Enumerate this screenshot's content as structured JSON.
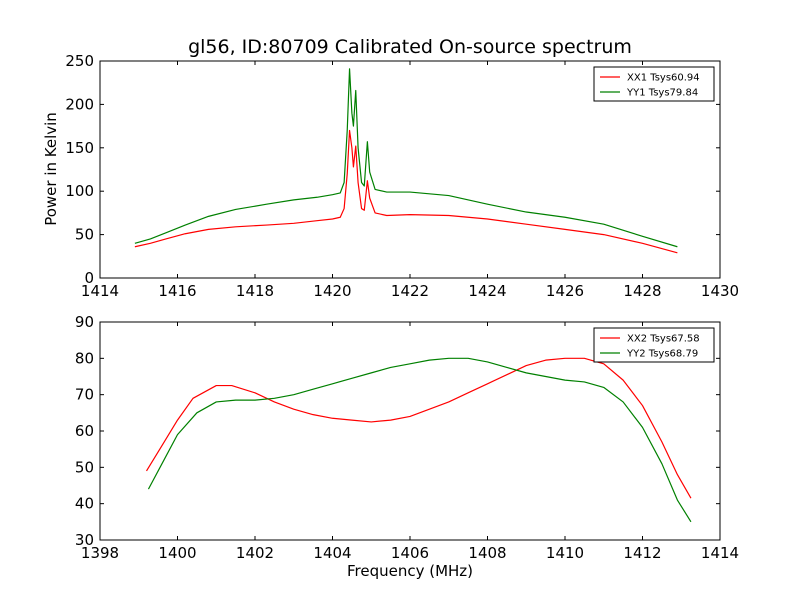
{
  "figure_title": "gl56, ID:80709 Calibrated On-source spectrum",
  "shared_ylabel": "Power in Kelvin",
  "shared_xlabel": "Frequency (MHz)",
  "colors": {
    "red": "#ff0000",
    "green": "#008000"
  },
  "chart_data": [
    {
      "type": "line",
      "title": "gl56, ID:80709 Calibrated On-source spectrum",
      "xlabel": "",
      "ylabel": "Power in Kelvin",
      "xlim": [
        1414,
        1430
      ],
      "ylim": [
        0,
        250
      ],
      "xticks": [
        1414,
        1416,
        1418,
        1420,
        1422,
        1424,
        1426,
        1428,
        1430
      ],
      "yticks": [
        0,
        50,
        100,
        150,
        200,
        250
      ],
      "grid": false,
      "legend_position": "top-right",
      "series": [
        {
          "name": "XX1 Tsys60.94",
          "color": "#ff0000",
          "points": [
            [
              1414.9,
              36
            ],
            [
              1415.3,
              40
            ],
            [
              1415.7,
              45
            ],
            [
              1416.2,
              51
            ],
            [
              1416.8,
              56
            ],
            [
              1417.5,
              59
            ],
            [
              1418.3,
              61
            ],
            [
              1419.0,
              63
            ],
            [
              1419.6,
              66
            ],
            [
              1420.0,
              68
            ],
            [
              1420.2,
              70
            ],
            [
              1420.3,
              80
            ],
            [
              1420.38,
              120
            ],
            [
              1420.44,
              170
            ],
            [
              1420.5,
              150
            ],
            [
              1420.54,
              128
            ],
            [
              1420.6,
              152
            ],
            [
              1420.66,
              110
            ],
            [
              1420.75,
              80
            ],
            [
              1420.82,
              78
            ],
            [
              1420.9,
              112
            ],
            [
              1420.96,
              92
            ],
            [
              1421.1,
              75
            ],
            [
              1421.4,
              72
            ],
            [
              1422.0,
              73
            ],
            [
              1423.0,
              72
            ],
            [
              1424.0,
              68
            ],
            [
              1425.0,
              62
            ],
            [
              1426.0,
              56
            ],
            [
              1427.0,
              50
            ],
            [
              1428.0,
              40
            ],
            [
              1428.9,
              29
            ]
          ]
        },
        {
          "name": "YY1 Tsys79.84",
          "color": "#008000",
          "points": [
            [
              1414.9,
              40
            ],
            [
              1415.3,
              45
            ],
            [
              1415.7,
              52
            ],
            [
              1416.2,
              61
            ],
            [
              1416.8,
              71
            ],
            [
              1417.5,
              79
            ],
            [
              1418.3,
              85
            ],
            [
              1419.0,
              90
            ],
            [
              1419.6,
              93
            ],
            [
              1420.0,
              96
            ],
            [
              1420.2,
              98
            ],
            [
              1420.3,
              110
            ],
            [
              1420.38,
              170
            ],
            [
              1420.44,
              241
            ],
            [
              1420.5,
              190
            ],
            [
              1420.54,
              175
            ],
            [
              1420.6,
              216
            ],
            [
              1420.66,
              150
            ],
            [
              1420.75,
              110
            ],
            [
              1420.82,
              106
            ],
            [
              1420.9,
              157
            ],
            [
              1420.96,
              122
            ],
            [
              1421.1,
              102
            ],
            [
              1421.4,
              99
            ],
            [
              1422.0,
              99
            ],
            [
              1423.0,
              95
            ],
            [
              1424.0,
              85
            ],
            [
              1425.0,
              76
            ],
            [
              1426.0,
              70
            ],
            [
              1427.0,
              62
            ],
            [
              1428.0,
              48
            ],
            [
              1428.9,
              36
            ]
          ]
        }
      ]
    },
    {
      "type": "line",
      "title": "",
      "xlabel": "Frequency (MHz)",
      "ylabel": "",
      "xlim": [
        1398,
        1414
      ],
      "ylim": [
        30,
        90
      ],
      "xticks": [
        1398,
        1400,
        1402,
        1404,
        1406,
        1408,
        1410,
        1412,
        1414
      ],
      "yticks": [
        30,
        40,
        50,
        60,
        70,
        80,
        90
      ],
      "grid": false,
      "legend_position": "top-right",
      "series": [
        {
          "name": "XX2 Tsys67.58",
          "color": "#ff0000",
          "points": [
            [
              1399.2,
              49
            ],
            [
              1399.6,
              56
            ],
            [
              1400.0,
              63
            ],
            [
              1400.4,
              69
            ],
            [
              1401.0,
              72.5
            ],
            [
              1401.4,
              72.5
            ],
            [
              1402.0,
              70.5
            ],
            [
              1402.5,
              68
            ],
            [
              1403.0,
              66
            ],
            [
              1403.5,
              64.5
            ],
            [
              1404.0,
              63.5
            ],
            [
              1404.5,
              63
            ],
            [
              1405.0,
              62.5
            ],
            [
              1405.5,
              63
            ],
            [
              1406.0,
              64
            ],
            [
              1406.5,
              66
            ],
            [
              1407.0,
              68
            ],
            [
              1407.5,
              70.5
            ],
            [
              1408.0,
              73
            ],
            [
              1408.5,
              75.5
            ],
            [
              1409.0,
              78
            ],
            [
              1409.5,
              79.5
            ],
            [
              1410.0,
              80
            ],
            [
              1410.5,
              80
            ],
            [
              1411.0,
              78.5
            ],
            [
              1411.5,
              74
            ],
            [
              1412.0,
              67
            ],
            [
              1412.5,
              57
            ],
            [
              1412.9,
              48
            ],
            [
              1413.25,
              41.5
            ]
          ]
        },
        {
          "name": "YY2 Tsys68.79",
          "color": "#008000",
          "points": [
            [
              1399.25,
              44
            ],
            [
              1399.6,
              51
            ],
            [
              1400.0,
              59
            ],
            [
              1400.5,
              65
            ],
            [
              1401.0,
              68
            ],
            [
              1401.5,
              68.5
            ],
            [
              1402.0,
              68.5
            ],
            [
              1402.5,
              69
            ],
            [
              1403.0,
              70
            ],
            [
              1403.5,
              71.5
            ],
            [
              1404.0,
              73
            ],
            [
              1404.5,
              74.5
            ],
            [
              1405.0,
              76
            ],
            [
              1405.5,
              77.5
            ],
            [
              1406.0,
              78.5
            ],
            [
              1406.5,
              79.5
            ],
            [
              1407.0,
              80
            ],
            [
              1407.5,
              80
            ],
            [
              1408.0,
              79
            ],
            [
              1408.5,
              77.5
            ],
            [
              1409.0,
              76
            ],
            [
              1409.5,
              75
            ],
            [
              1410.0,
              74
            ],
            [
              1410.5,
              73.5
            ],
            [
              1411.0,
              72
            ],
            [
              1411.5,
              68
            ],
            [
              1412.0,
              61
            ],
            [
              1412.5,
              51
            ],
            [
              1412.9,
              41
            ],
            [
              1413.25,
              35
            ]
          ]
        }
      ]
    }
  ]
}
